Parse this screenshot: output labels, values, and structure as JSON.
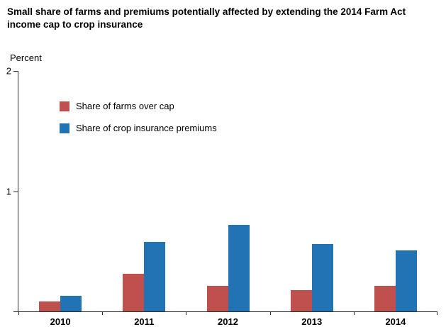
{
  "title": "Small share of farms and premiums potentially affected by extending the 2014 Farm Act income cap to crop insurance",
  "chart_data": {
    "type": "bar",
    "title": "Small share of farms and premiums potentially affected by extending the 2014 Farm Act income cap to crop insurance",
    "ylabel": "Percent",
    "xlabel": "",
    "ylim": [
      0,
      2
    ],
    "yticks_labeled": [
      1,
      2
    ],
    "grid": false,
    "legend_position": "upper-left-inside",
    "categories": [
      "2010",
      "2011",
      "2012",
      "2013",
      "2014"
    ],
    "series": [
      {
        "name": "Share of farms over cap",
        "color": "#c0504d",
        "values": [
          0.08,
          0.31,
          0.21,
          0.18,
          0.21
        ]
      },
      {
        "name": "Share of crop insurance premiums",
        "color": "#2173b4",
        "values": [
          0.13,
          0.58,
          0.72,
          0.56,
          0.51
        ]
      }
    ]
  }
}
